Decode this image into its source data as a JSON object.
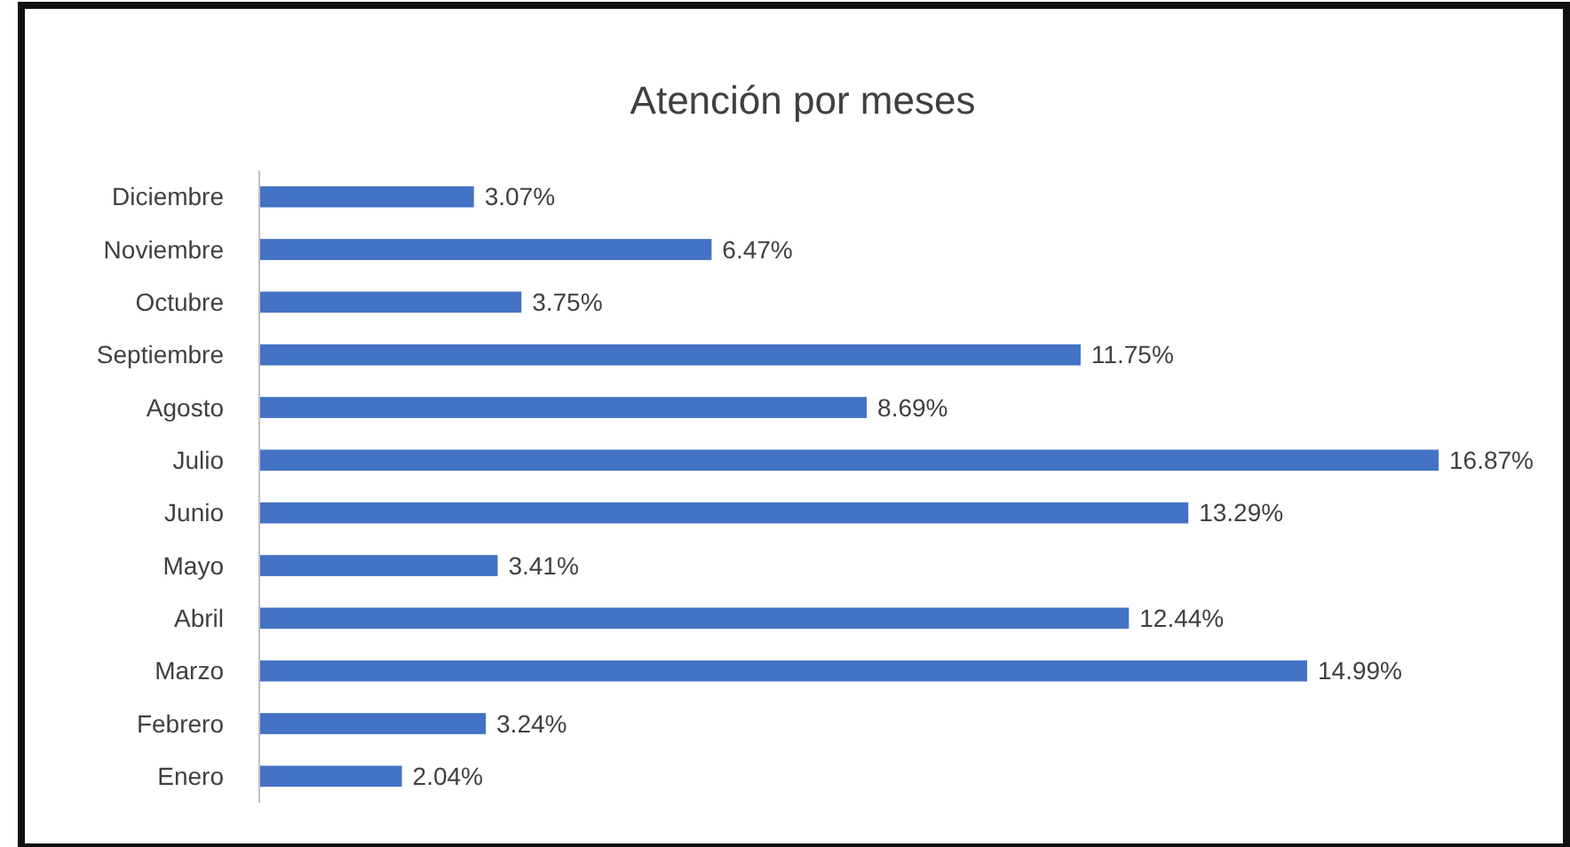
{
  "chart_data": {
    "type": "bar",
    "orientation": "horizontal",
    "title": "Atención por meses",
    "categories": [
      "Diciembre",
      "Noviembre",
      "Octubre",
      "Septiembre",
      "Agosto",
      "Julio",
      "Junio",
      "Mayo",
      "Abril",
      "Marzo",
      "Febrero",
      "Enero"
    ],
    "values": [
      3.07,
      6.47,
      3.75,
      11.75,
      8.69,
      16.87,
      13.29,
      3.41,
      12.44,
      14.99,
      3.24,
      2.04
    ],
    "value_labels": [
      "3.07%",
      "6.47%",
      "3.75%",
      "11.75%",
      "8.69%",
      "16.87%",
      "13.29%",
      "3.41%",
      "12.44%",
      "14.99%",
      "3.24%",
      "2.04%"
    ],
    "color": "#4472c4"
  }
}
